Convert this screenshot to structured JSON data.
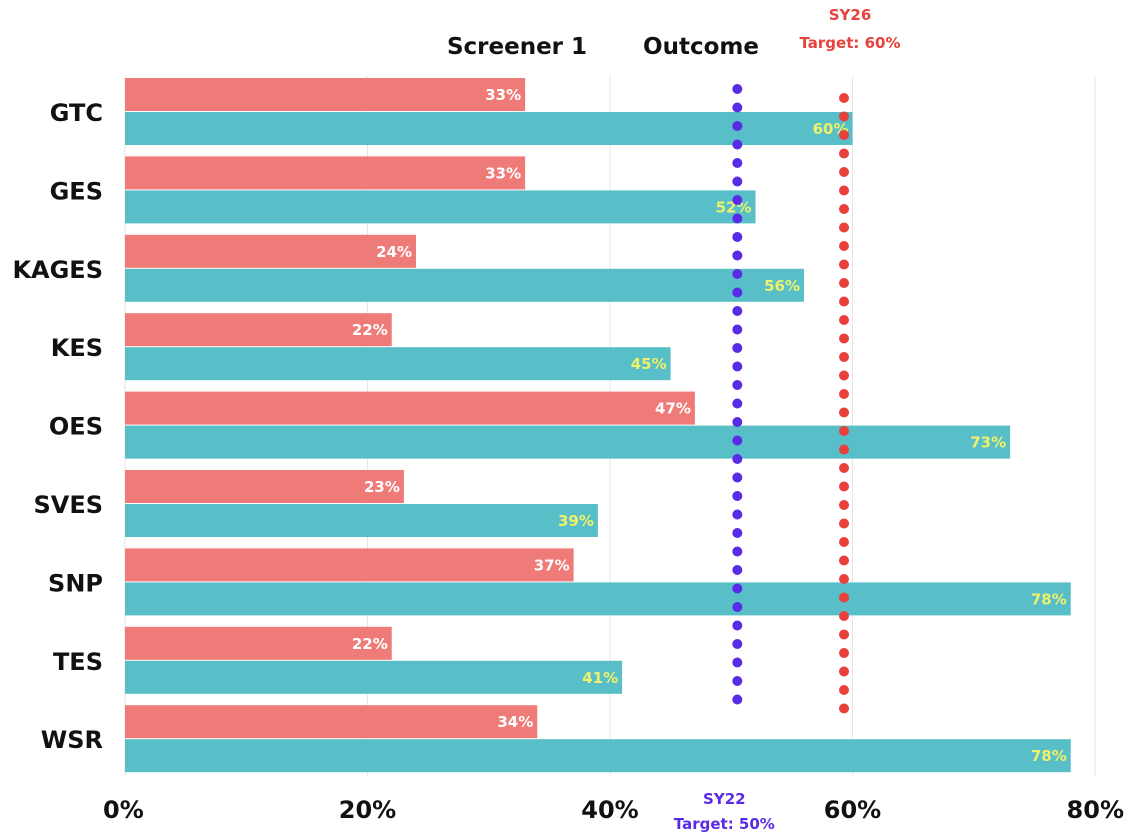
{
  "chart_data": {
    "type": "bar",
    "orientation": "horizontal",
    "categories": [
      "GTC",
      "GES",
      "KAGES",
      "KES",
      "OES",
      "SVES",
      "SNP",
      "TES",
      "WSR"
    ],
    "series": [
      {
        "name": "Screener 1",
        "color": "#ef7b78",
        "label_color": "#ffffff",
        "values": [
          33,
          33,
          24,
          22,
          47,
          23,
          37,
          22,
          34
        ],
        "labels": [
          "33%",
          "33%",
          "24%",
          "22%",
          "47%",
          "23%",
          "37%",
          "22%",
          "34%"
        ]
      },
      {
        "name": "Outcome",
        "color": "#58bfc8",
        "label_color": "#eef26a",
        "values": [
          60,
          52,
          56,
          45,
          73,
          39,
          78,
          41,
          78
        ],
        "labels": [
          "60%",
          "52%",
          "56%",
          "45%",
          "73%",
          "39%",
          "78%",
          "41%",
          "78%"
        ]
      }
    ],
    "xlim": [
      0,
      80
    ],
    "x_ticks": [
      0,
      20,
      40,
      60,
      80
    ],
    "x_tick_labels": [
      "0%",
      "20%",
      "40%",
      "60%",
      "80%"
    ],
    "grid": "vertical",
    "legend": "top-center",
    "reference_lines": [
      {
        "value": 50.5,
        "color": "#5a2be6",
        "style": "dotted",
        "label_line1": "SY22",
        "label_line2": "Target: 50%",
        "label_position": "bottom"
      },
      {
        "value": 59.3,
        "color": "#e8403a",
        "style": "dotted",
        "label_line1": "SY26",
        "label_line2": "Target: 60%",
        "label_position": "top"
      }
    ]
  }
}
